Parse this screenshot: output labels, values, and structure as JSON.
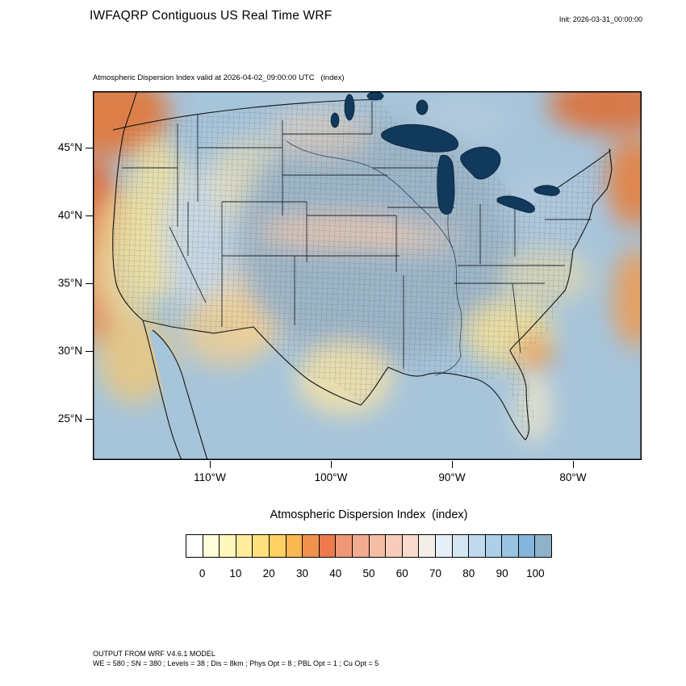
{
  "header": {
    "title": "IWFAQRP Contiguous US Real Time WRF",
    "init_label": "Init: 2026-03-31_00:00:00"
  },
  "plot": {
    "subtitle": "Atmospheric Dispersion Index valid at 2026-04-02_09:00:00 UTC   (index)"
  },
  "axes": {
    "lat_labels": [
      "45°N",
      "40°N",
      "35°N",
      "30°N",
      "25°N"
    ],
    "lon_labels": [
      "110°W",
      "100°W",
      "90°W",
      "80°W"
    ]
  },
  "legend": {
    "title": "Atmospheric Dispersion Index  (index)",
    "tick_labels": [
      "0",
      "10",
      "20",
      "30",
      "40",
      "50",
      "60",
      "70",
      "80",
      "90",
      "100"
    ],
    "cell_colors": [
      "#ffffff",
      "#ffffd9",
      "#fff7bb",
      "#ffec9c",
      "#ffe07f",
      "#ffd161",
      "#fab753",
      "#f0924e",
      "#ec7a4c",
      "#ee9878",
      "#f2ab90",
      "#f5bda6",
      "#f7ccba",
      "#f9dacc",
      "#f4eee9",
      "#e6eef6",
      "#d5e5f2",
      "#c1daee",
      "#add0e8",
      "#99c3e1",
      "#85b5da",
      "#8fb2ca"
    ]
  },
  "footer": {
    "line1": "OUTPUT FROM WRF V4.6.1 MODEL",
    "line2": "WE = 580 ; SN = 380 ; Levels = 38 ; Dis = 8km ; Phys Opt = 8 ; PBL Opt = 1 ; Cu Opt = 5"
  },
  "map_colors": {
    "ocean": "#a6c4da",
    "high_adi_blue": "#9cb4c6",
    "coastline": "#141414",
    "lakes": "#10395c"
  },
  "chart_data": {
    "type": "heatmap",
    "title": "Atmospheric Dispersion Index  (index)",
    "region": "Contiguous US with county boundaries",
    "valid_time": "2026-04-02_09:00:00 UTC",
    "init_time": "2026-03-31_00:00:00",
    "scale_ticks": [
      0,
      10,
      20,
      30,
      40,
      50,
      60,
      70,
      80,
      90,
      100
    ],
    "scale_range": [
      0,
      100
    ],
    "pattern_summary": "High ADI (blue, 70-100+) over the central Plains, Midwest and oceans; moderate warm values (orange/red, 30-50) along the Pacific Northwest coast, Atlantic offshore, top-right corner and Southeast patches; low ADI (white-yellow, 0-20) over the Intermountain West, south Texas and Georgia/Florida."
  }
}
